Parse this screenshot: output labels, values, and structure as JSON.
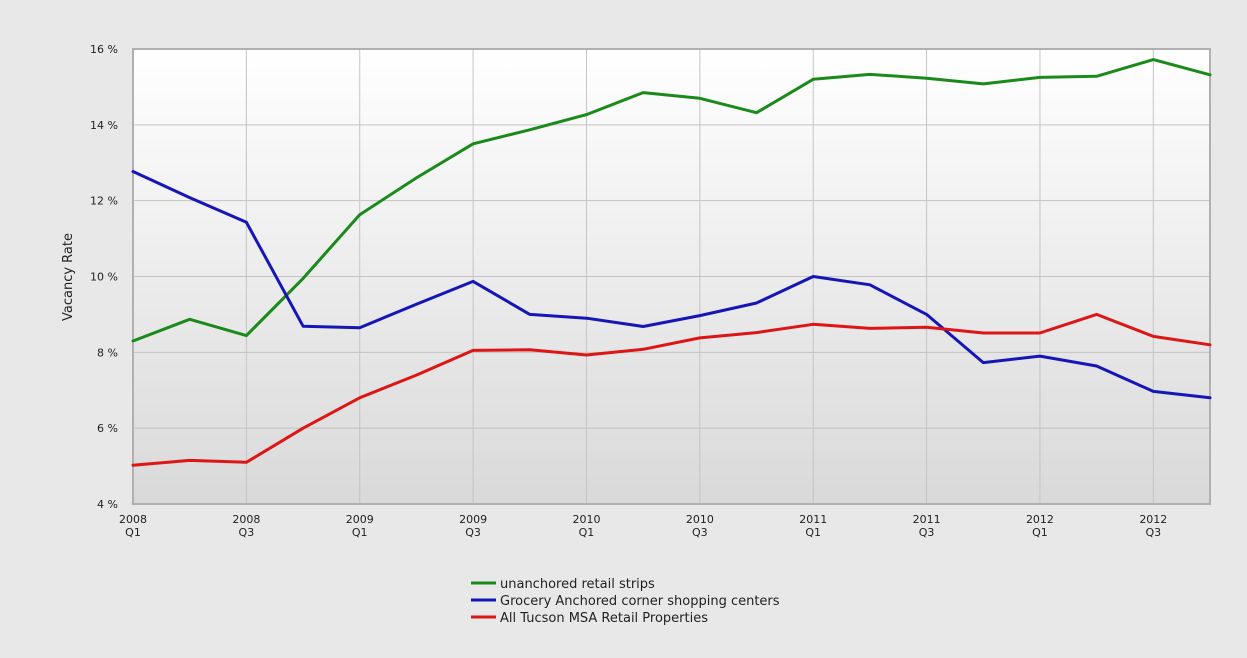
{
  "chart_data": {
    "type": "line",
    "title": "",
    "xlabel": "",
    "ylabel": "Vacancy Rate",
    "ylim": [
      4,
      16
    ],
    "y_ticks": [
      "4 %",
      "6 %",
      "8 %",
      "10 %",
      "12 %",
      "14 %",
      "16 %"
    ],
    "y_tick_values": [
      4,
      6,
      8,
      10,
      12,
      14,
      16
    ],
    "x_tick_labels": [
      [
        "2008",
        "Q1"
      ],
      [
        "2008",
        "Q3"
      ],
      [
        "2009",
        "Q1"
      ],
      [
        "2009",
        "Q3"
      ],
      [
        "2010",
        "Q1"
      ],
      [
        "2010",
        "Q3"
      ],
      [
        "2011",
        "Q1"
      ],
      [
        "2011",
        "Q3"
      ],
      [
        "2012",
        "Q1"
      ],
      [
        "2012",
        "Q3"
      ]
    ],
    "categories": [
      "2008 Q1",
      "2008 Q2",
      "2008 Q3",
      "2008 Q4",
      "2009 Q1",
      "2009 Q2",
      "2009 Q3",
      "2009 Q4",
      "2010 Q1",
      "2010 Q2",
      "2010 Q3",
      "2010 Q4",
      "2011 Q1",
      "2011 Q2",
      "2011 Q3",
      "2011 Q4",
      "2012 Q1",
      "2012 Q2",
      "2012 Q3",
      "2012 Q4"
    ],
    "grid": true,
    "legend_position": "bottom",
    "series": [
      {
        "name": "unanchored retail strips",
        "color": "#1a8a1a",
        "values": [
          8.3,
          8.87,
          8.44,
          9.95,
          11.63,
          12.6,
          13.5,
          13.87,
          14.27,
          14.85,
          14.7,
          14.32,
          15.2,
          15.33,
          15.23,
          15.08,
          15.25,
          15.28,
          15.72,
          15.32
        ]
      },
      {
        "name": "Grocery Anchored corner shopping centers",
        "color": "#1515b8",
        "values": [
          12.77,
          12.08,
          11.43,
          8.69,
          8.65,
          9.27,
          9.87,
          9.0,
          8.9,
          8.68,
          8.97,
          9.3,
          10.0,
          9.78,
          9.0,
          7.73,
          7.9,
          7.64,
          6.97,
          6.8
        ]
      },
      {
        "name": "All Tucson MSA Retail Properties",
        "color": "#dd1515",
        "values": [
          5.02,
          5.15,
          5.1,
          6.0,
          6.8,
          7.4,
          8.05,
          8.07,
          7.93,
          8.08,
          8.38,
          8.52,
          8.74,
          8.63,
          8.66,
          8.51,
          8.51,
          9.0,
          8.42,
          8.2
        ]
      }
    ]
  }
}
